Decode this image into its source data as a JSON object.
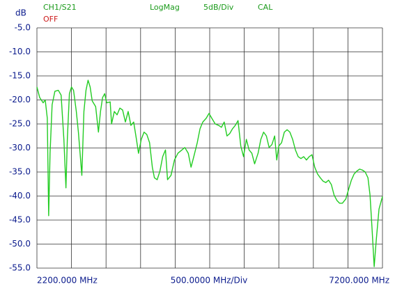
{
  "chart_data": {
    "type": "line",
    "y_unit": "dB",
    "format": "LogMag",
    "scale": "5dB/Div",
    "calibration": "CAL",
    "status": "OFF",
    "x_division_label": "500.0000 MHz/Div",
    "xlim": [
      2200,
      7200
    ],
    "xticks": [
      {
        "value": 2200,
        "label": "2200.000 MHz"
      },
      {
        "value": 7200,
        "label": "7200.000 MHz"
      }
    ],
    "xgrid": [
      2200,
      2700,
      3200,
      3700,
      4200,
      4700,
      5200,
      5700,
      6200,
      6700,
      7200
    ],
    "ylim": [
      -55,
      -5
    ],
    "yticks": [
      {
        "value": -5,
        "label": "-5.0"
      },
      {
        "value": -10,
        "label": "-10.0"
      },
      {
        "value": -15,
        "label": "-15.0"
      },
      {
        "value": -20,
        "label": "-20.0"
      },
      {
        "value": -25,
        "label": "-25.0"
      },
      {
        "value": -30,
        "label": "-30.0"
      },
      {
        "value": -35,
        "label": "-35.0"
      },
      {
        "value": -40,
        "label": "-40.0"
      },
      {
        "value": -45,
        "label": "-45.0"
      },
      {
        "value": -50,
        "label": "-50.0"
      },
      {
        "value": -55,
        "label": "-55.0"
      }
    ],
    "grid": true,
    "series": [
      {
        "name": "CH1/S21",
        "color": "#22cc22",
        "x": [
          2200,
          2240,
          2290,
          2320,
          2350,
          2370,
          2390,
          2420,
          2460,
          2510,
          2550,
          2590,
          2620,
          2640,
          2670,
          2700,
          2730,
          2770,
          2800,
          2850,
          2880,
          2910,
          2940,
          2970,
          3000,
          3050,
          3090,
          3120,
          3150,
          3180,
          3210,
          3260,
          3280,
          3320,
          3360,
          3400,
          3440,
          3480,
          3520,
          3560,
          3600,
          3640,
          3670,
          3710,
          3750,
          3790,
          3830,
          3870,
          3900,
          3940,
          3980,
          4020,
          4060,
          4090,
          4140,
          4190,
          4240,
          4290,
          4340,
          4390,
          4430,
          4470,
          4520,
          4560,
          4600,
          4650,
          4690,
          4730,
          4780,
          4830,
          4870,
          4910,
          4950,
          4990,
          5030,
          5070,
          5110,
          5150,
          5190,
          5230,
          5270,
          5310,
          5350,
          5400,
          5440,
          5480,
          5520,
          5560,
          5600,
          5640,
          5670,
          5700,
          5740,
          5780,
          5820,
          5860,
          5900,
          5940,
          5980,
          6020,
          6060,
          6100,
          6140,
          6180,
          6220,
          6260,
          6300,
          6340,
          6380,
          6420,
          6460,
          6500,
          6540,
          6580,
          6620,
          6670,
          6710,
          6750,
          6790,
          6830,
          6870,
          6910,
          6950,
          6990,
          7020,
          7050,
          7080,
          7110,
          7150,
          7200
        ],
        "values": [
          -17.3,
          -19.5,
          -20.6,
          -20.0,
          -23.8,
          -44.1,
          -31.1,
          -21.0,
          -18.2,
          -18.0,
          -19.0,
          -28.2,
          -38.3,
          -28.2,
          -18.7,
          -17.3,
          -18.0,
          -22.4,
          -26.7,
          -35.7,
          -22.4,
          -18.0,
          -15.9,
          -17.3,
          -20.2,
          -21.4,
          -26.7,
          -22.4,
          -19.5,
          -18.7,
          -20.6,
          -20.4,
          -25.0,
          -22.4,
          -23.1,
          -21.7,
          -22.1,
          -24.6,
          -22.4,
          -25.3,
          -24.6,
          -28.2,
          -31.1,
          -28.2,
          -26.7,
          -27.2,
          -28.9,
          -34.0,
          -36.2,
          -36.6,
          -34.8,
          -31.8,
          -30.4,
          -36.6,
          -35.7,
          -32.5,
          -31.1,
          -30.5,
          -29.9,
          -31.1,
          -34.0,
          -31.8,
          -28.9,
          -26.0,
          -24.6,
          -23.8,
          -22.8,
          -23.8,
          -25.0,
          -25.3,
          -25.7,
          -24.6,
          -27.5,
          -27.0,
          -26.0,
          -25.3,
          -24.3,
          -29.6,
          -31.8,
          -28.2,
          -30.4,
          -31.1,
          -33.3,
          -31.1,
          -28.2,
          -26.7,
          -27.5,
          -29.9,
          -29.3,
          -27.5,
          -32.5,
          -29.6,
          -28.9,
          -26.7,
          -26.2,
          -26.7,
          -28.2,
          -30.4,
          -31.8,
          -32.2,
          -31.8,
          -32.5,
          -31.8,
          -31.4,
          -34.0,
          -35.4,
          -36.2,
          -36.9,
          -37.2,
          -36.7,
          -37.6,
          -39.8,
          -40.9,
          -41.5,
          -41.5,
          -40.6,
          -38.6,
          -36.7,
          -35.4,
          -34.8,
          -34.4,
          -34.6,
          -35.0,
          -36.2,
          -39.8,
          -47.0,
          -54.7,
          -49.2,
          -42.7,
          -40.1
        ]
      }
    ]
  }
}
